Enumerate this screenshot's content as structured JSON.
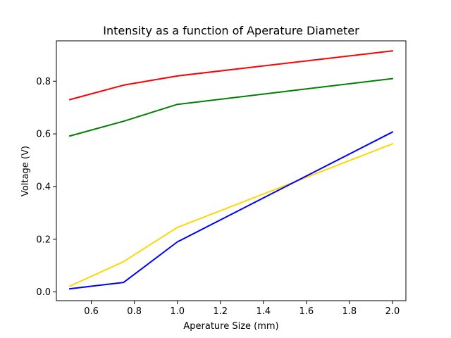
{
  "chart_data": {
    "type": "line",
    "title": "Intensity as a function of Aperature Diameter",
    "xlabel": "Aperature Size (mm)",
    "ylabel": "Voltage (V)",
    "x": [
      0.5,
      0.75,
      1.0,
      2.0
    ],
    "xlim": [
      0.4375,
      2.0625
    ],
    "ylim": [
      -0.0332,
      0.9532
    ],
    "xticks": [
      0.6,
      0.8,
      1.0,
      1.2,
      1.4,
      1.6,
      1.8,
      2.0
    ],
    "xtick_labels": [
      "0.6",
      "0.8",
      "1.0",
      "1.2",
      "1.4",
      "1.6",
      "1.8",
      "2.0"
    ],
    "yticks": [
      0.0,
      0.2,
      0.4,
      0.6,
      0.8
    ],
    "ytick_labels": [
      "0.0",
      "0.2",
      "0.4",
      "0.6",
      "0.8"
    ],
    "grid": false,
    "legend": "none",
    "series": [
      {
        "color": "#ff0000",
        "values": [
          0.73,
          0.785,
          0.82,
          0.915
        ]
      },
      {
        "color": "#008000",
        "values": [
          0.592,
          0.648,
          0.712,
          0.81
        ]
      },
      {
        "color": "#ffd700",
        "values": [
          0.022,
          0.115,
          0.245,
          0.562
        ]
      },
      {
        "color": "#0000ff",
        "values": [
          0.012,
          0.036,
          0.19,
          0.607
        ]
      }
    ]
  }
}
